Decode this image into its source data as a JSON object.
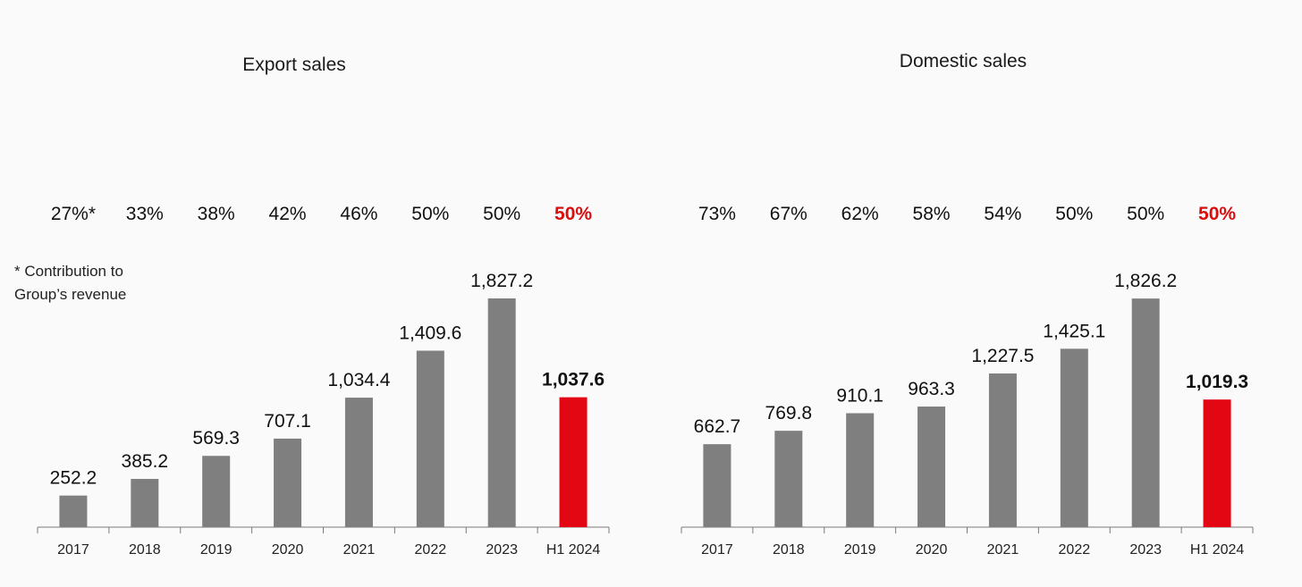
{
  "chart_data": [
    {
      "type": "bar",
      "title": "Export sales",
      "categories": [
        "2017",
        "2018",
        "2019",
        "2020",
        "2021",
        "2022",
        "2023",
        "H1 2024"
      ],
      "values": [
        252.2,
        385.2,
        569.3,
        707.1,
        1034.4,
        1409.6,
        1827.2,
        1037.6
      ],
      "value_labels": [
        "252.2",
        "385.2",
        "569.3",
        "707.1",
        "1,034.4",
        "1,409.6",
        "1,827.2",
        "1,037.6"
      ],
      "contribution_labels": [
        "27%*",
        "33%",
        "38%",
        "42%",
        "46%",
        "50%",
        "50%",
        "50%"
      ],
      "contribution_values": [
        27,
        33,
        38,
        42,
        46,
        50,
        50,
        50
      ],
      "highlight_index": 7,
      "note_lines": [
        "* Contribution to",
        "Group’s revenue"
      ],
      "ylim": [
        0,
        2000
      ],
      "grid": false,
      "legend": "none"
    },
    {
      "type": "bar",
      "title": "Domestic sales",
      "categories": [
        "2017",
        "2018",
        "2019",
        "2020",
        "2021",
        "2022",
        "2023",
        "H1 2024"
      ],
      "values": [
        662.7,
        769.8,
        910.1,
        963.3,
        1227.5,
        1425.1,
        1826.2,
        1019.3
      ],
      "value_labels": [
        "662.7",
        "769.8",
        "910.1",
        "963.3",
        "1,227.5",
        "1,425.1",
        "1,826.2",
        "1,019.3"
      ],
      "contribution_labels": [
        "73%",
        "67%",
        "62%",
        "58%",
        "54%",
        "50%",
        "50%",
        "50%"
      ],
      "contribution_values": [
        73,
        67,
        62,
        58,
        54,
        50,
        50,
        50
      ],
      "highlight_index": 7,
      "ylim": [
        0,
        2000
      ],
      "grid": false,
      "legend": "none"
    }
  ],
  "colors": {
    "bar": "#7f7f7f",
    "highlight": "#e30613",
    "highlight_text": "#d90f0f",
    "axis": "#7a7a7a"
  }
}
